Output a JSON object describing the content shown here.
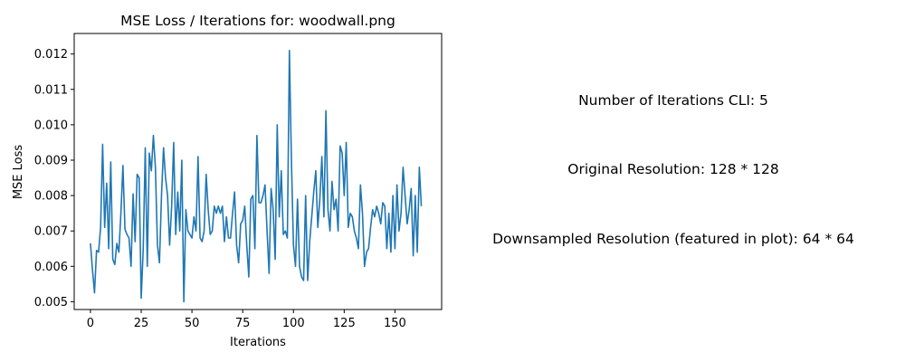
{
  "chart_data": {
    "type": "line",
    "title": "MSE Loss / Iterations for: woodwall.png",
    "xlabel": "Iterations",
    "ylabel": "MSE Loss",
    "xlim": [
      -8,
      173
    ],
    "ylim": [
      0.00478,
      0.01258
    ],
    "xticks": [
      0,
      25,
      50,
      75,
      100,
      125,
      150
    ],
    "yticks": [
      0.005,
      0.006,
      0.007,
      0.008,
      0.009,
      0.01,
      0.011,
      0.012
    ],
    "ytick_labels": [
      "0.005",
      "0.006",
      "0.007",
      "0.008",
      "0.009",
      "0.010",
      "0.011",
      "0.012"
    ],
    "grid": false,
    "line_color": "#1f77b4",
    "series": [
      {
        "values": [
          0.00665,
          0.0059,
          0.00525,
          0.00645,
          0.0064,
          0.0071,
          0.00945,
          0.0071,
          0.00835,
          0.0065,
          0.00895,
          0.0062,
          0.00605,
          0.00665,
          0.0064,
          0.0075,
          0.00885,
          0.00705,
          0.0069,
          0.0068,
          0.006,
          0.00805,
          0.0067,
          0.0086,
          0.0085,
          0.0051,
          0.0065,
          0.00935,
          0.006,
          0.0092,
          0.0087,
          0.0097,
          0.0088,
          0.0066,
          0.0061,
          0.008,
          0.00935,
          0.0085,
          0.008,
          0.0066,
          0.0077,
          0.0095,
          0.0069,
          0.0081,
          0.007,
          0.009,
          0.005,
          0.0076,
          0.007,
          0.0069,
          0.0068,
          0.0074,
          0.007,
          0.0091,
          0.0068,
          0.0067,
          0.007,
          0.0086,
          0.0076,
          0.0069,
          0.007,
          0.0077,
          0.0075,
          0.0077,
          0.0075,
          0.0077,
          0.0067,
          0.0074,
          0.0068,
          0.0068,
          0.0075,
          0.0081,
          0.0066,
          0.0061,
          0.0072,
          0.0073,
          0.0077,
          0.0066,
          0.0057,
          0.0079,
          0.008,
          0.0065,
          0.0097,
          0.0078,
          0.0078,
          0.008,
          0.0083,
          0.007,
          0.0058,
          0.0082,
          0.0076,
          0.0062,
          0.01,
          0.0074,
          0.0087,
          0.0069,
          0.007,
          0.0068,
          0.0121,
          0.009,
          0.0066,
          0.006,
          0.0079,
          0.006,
          0.0057,
          0.0056,
          0.008,
          0.0056,
          0.0067,
          0.0074,
          0.0081,
          0.0087,
          0.0071,
          0.0079,
          0.0091,
          0.0074,
          0.0104,
          0.0076,
          0.007,
          0.0084,
          0.0076,
          0.0079,
          0.007,
          0.0094,
          0.0092,
          0.008,
          0.0095,
          0.0071,
          0.0075,
          0.0074,
          0.007,
          0.0068,
          0.0065,
          0.0083,
          0.0075,
          0.006,
          0.0064,
          0.0065,
          0.0071,
          0.0076,
          0.0074,
          0.0077,
          0.0075,
          0.0072,
          0.0078,
          0.0077,
          0.0065,
          0.0075,
          0.0064,
          0.008,
          0.0065,
          0.0083,
          0.007,
          0.0075,
          0.0088,
          0.008,
          0.0072,
          0.0076,
          0.0082,
          0.0063,
          0.008,
          0.0064,
          0.0088,
          0.0077
        ]
      }
    ]
  },
  "info": {
    "iterations": "Number of Iterations CLI: 5",
    "original_resolution": "Original Resolution: 128 * 128",
    "downsampled_resolution": "Downsampled Resolution (featured in plot): 64 * 64"
  }
}
